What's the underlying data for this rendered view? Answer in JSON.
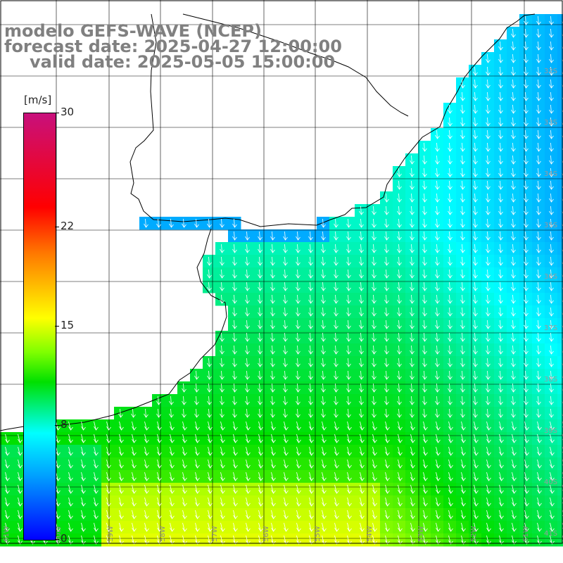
{
  "title": {
    "line1": "modelo GEFS-WAVE (NCEP)",
    "line2": "forecast date: 2025-04-27 12:00:00",
    "line3": "valid date: 2025-05-05 15:00:00"
  },
  "colorbar": {
    "units": "[m/s]",
    "ticks": [
      "30",
      "22",
      "15",
      "8",
      "0"
    ],
    "tick_values": [
      30,
      22,
      15,
      8,
      0
    ],
    "range": [
      0,
      30
    ],
    "colors": [
      "#0000ff",
      "#00a0ff",
      "#00ffff",
      "#00e000",
      "#7fff00",
      "#ffff00",
      "#ff7a00",
      "#ff0000",
      "#c8107c"
    ]
  },
  "map": {
    "variable": "wind speed and direction",
    "lat_labels": [
      "32S",
      "33S",
      "34S",
      "35S",
      "36S",
      "37S",
      "38S",
      "39S",
      "40S",
      "41S"
    ],
    "lon_labels": [
      "61W",
      "60W",
      "59W",
      "58W",
      "57W",
      "56W",
      "55W",
      "54W",
      "53W",
      "52W",
      "51W"
    ],
    "background_color": "#ffffff",
    "coast_color": "#000000",
    "grid_color": "#000000",
    "arrow_color": "#ffffff"
  }
}
